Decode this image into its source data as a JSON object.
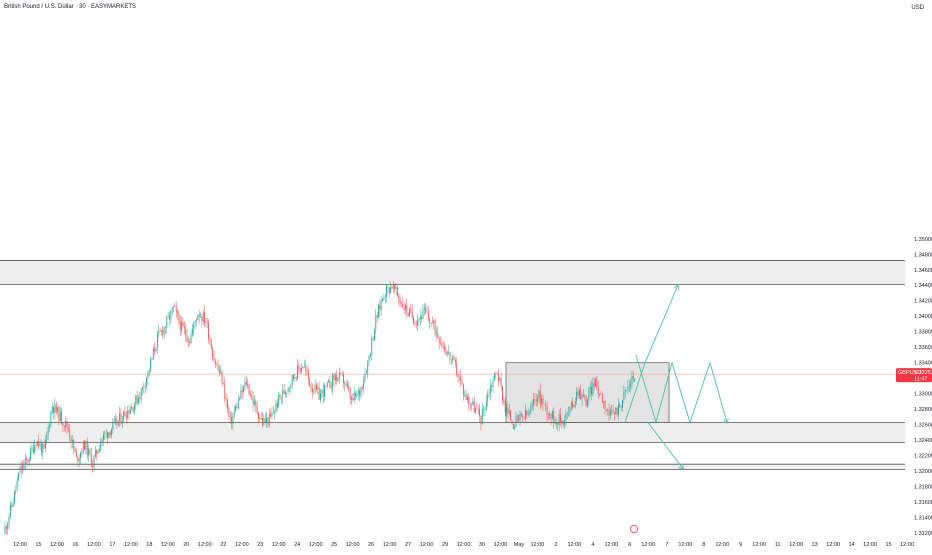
{
  "header": {
    "title": "British Pound / U.S. Dollar · 30 · EASYMARKETS",
    "currency": "USD"
  },
  "price_tag": {
    "symbol": "GBPUSD",
    "price": "1.33252",
    "countdown": "11:47"
  },
  "colors": {
    "up": "#26a69a",
    "down": "#ef5350",
    "zone_fill": "#e8e8e8",
    "zone_line": "#555555",
    "projection": "#4dbfa6",
    "price_line": "#f7a5a5",
    "tag": "#f23645"
  },
  "chart_data": {
    "type": "candlestick",
    "title": "British Pound / U.S. Dollar · 30 · EASYMARKETS",
    "ylim": [
      1.3115,
      1.3785
    ],
    "y_ticks": [
      {
        "value": 1.312,
        "label": "1.31200"
      },
      {
        "value": 1.314,
        "label": "1.31400"
      },
      {
        "value": 1.316,
        "label": "1.31600"
      },
      {
        "value": 1.318,
        "label": "1.31800"
      },
      {
        "value": 1.32,
        "label": "1.32000"
      },
      {
        "value": 1.322,
        "label": "1.32200"
      },
      {
        "value": 1.324,
        "label": "1.32400"
      },
      {
        "value": 1.326,
        "label": "1.32600"
      },
      {
        "value": 1.328,
        "label": "1.32800"
      },
      {
        "value": 1.33,
        "label": "1.33000"
      },
      {
        "value": 1.332,
        "label": "1.33200"
      },
      {
        "value": 1.334,
        "label": "1.33400"
      },
      {
        "value": 1.336,
        "label": "1.33600"
      },
      {
        "value": 1.338,
        "label": "1.33800"
      },
      {
        "value": 1.34,
        "label": "1.34000"
      },
      {
        "value": 1.342,
        "label": "1.34200"
      },
      {
        "value": 1.344,
        "label": "1.34400"
      },
      {
        "value": 1.346,
        "label": "1.34600"
      },
      {
        "value": 1.348,
        "label": "1.34800"
      },
      {
        "value": 1.35,
        "label": "1.35000"
      }
    ],
    "x_ticks": [
      "12:00",
      "15",
      "12:00",
      "16",
      "12:00",
      "17",
      "12:00",
      "18",
      "12:00",
      "20",
      "12:00",
      "22",
      "12:00",
      "23",
      "12:00",
      "24",
      "12:00",
      "25",
      "12:00",
      "26",
      "12:00",
      "27",
      "12:00",
      "29",
      "12:00",
      "30",
      "12:00",
      "May",
      "12:00",
      "2",
      "12:00",
      "4",
      "12:00",
      "6",
      "12:00",
      "7",
      "12:00",
      "8",
      "12:00",
      "9",
      "12:00",
      "11",
      "12:00",
      "13",
      "12:00",
      "14",
      "12:00",
      "15",
      "12:00"
    ],
    "current_price": 1.33252,
    "zones": [
      {
        "name": "upper-resistance-zone",
        "low": 1.3441,
        "high": 1.3472
      },
      {
        "name": "mid-support-zone",
        "low": 1.3237,
        "high": 1.3263
      },
      {
        "name": "lower-support-zone",
        "low": 1.3202,
        "high": 1.3209
      }
    ],
    "range_box": {
      "low": 1.3263,
      "high": 1.334
    },
    "candle_path": [
      1.312,
      1.3155,
      1.32,
      1.3215,
      1.324,
      1.3225,
      1.3285,
      1.327,
      1.3255,
      1.3215,
      1.3235,
      1.321,
      1.324,
      1.3252,
      1.3262,
      1.3275,
      1.3285,
      1.3302,
      1.3332,
      1.3372,
      1.3388,
      1.341,
      1.3385,
      1.337,
      1.3405,
      1.3395,
      1.3345,
      1.3318,
      1.3262,
      1.329,
      1.3315,
      1.3285,
      1.3263,
      1.3268,
      1.3292,
      1.3308,
      1.3325,
      1.3338,
      1.331,
      1.3298,
      1.3308,
      1.3322,
      1.3318,
      1.329,
      1.3302,
      1.334,
      1.3395,
      1.343,
      1.344,
      1.342,
      1.3405,
      1.3395,
      1.3405,
      1.339,
      1.337,
      1.335,
      1.333,
      1.3298,
      1.3285,
      1.3268,
      1.3305,
      1.333,
      1.3282,
      1.3262,
      1.3268,
      1.3275,
      1.33,
      1.3282,
      1.3268,
      1.3265,
      1.3278,
      1.3305,
      1.329,
      1.3315,
      1.3295,
      1.327,
      1.3282,
      1.3305,
      1.3325
    ],
    "projections": [
      {
        "name": "bullish-breakout-projection",
        "points": [
          [
            1.3263,
            "t0"
          ],
          [
            1.334,
            "t1"
          ],
          [
            1.344,
            "t2"
          ]
        ]
      },
      {
        "name": "range-continuation-projection",
        "points": [
          [
            1.335,
            "t0"
          ],
          [
            1.3263,
            "t1"
          ],
          [
            1.334,
            "t2"
          ],
          [
            1.3263,
            "t3"
          ],
          [
            1.334,
            "t4"
          ],
          [
            1.3263,
            "t5"
          ]
        ]
      },
      {
        "name": "bearish-breakdown-projection",
        "points": [
          [
            1.3263,
            "t0"
          ],
          [
            1.3203,
            "t1"
          ]
        ]
      }
    ]
  }
}
